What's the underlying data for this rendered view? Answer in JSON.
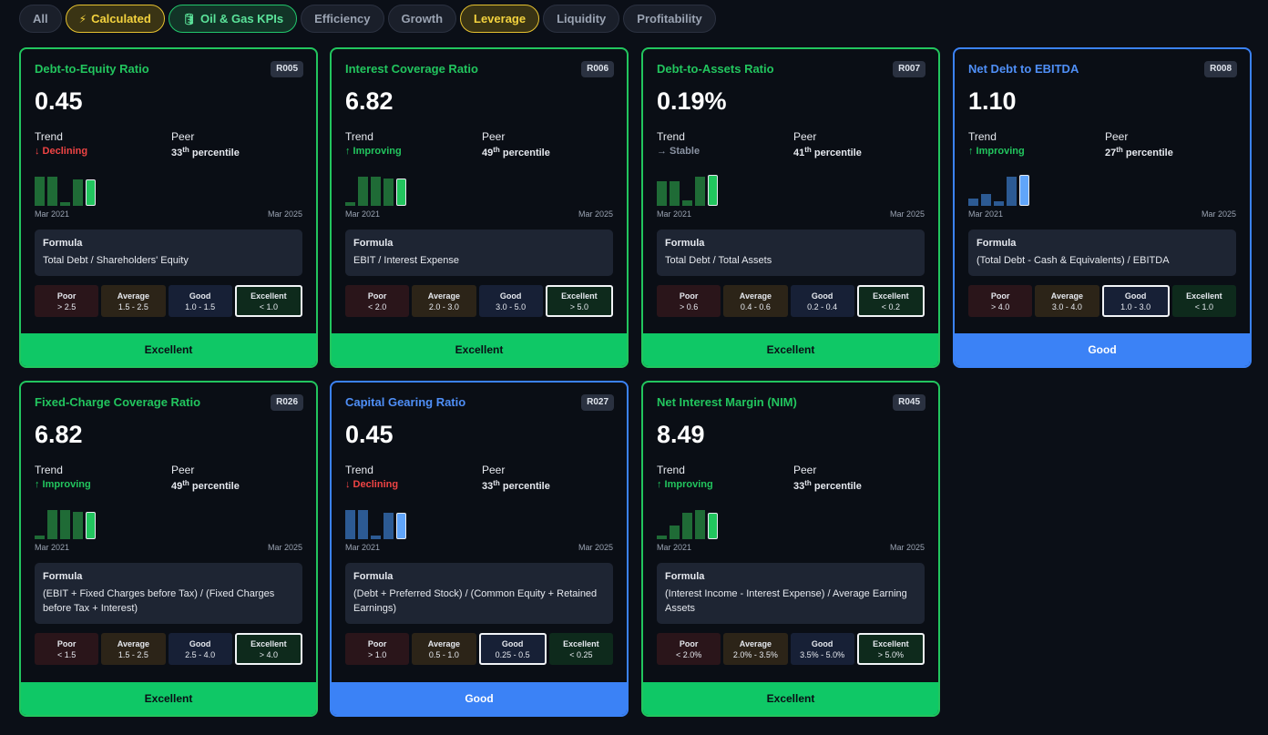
{
  "filters": [
    {
      "label": "All",
      "icon": "",
      "style": "plain"
    },
    {
      "label": "Calculated",
      "icon": "⚡",
      "style": "calc"
    },
    {
      "label": "Oil & Gas KPIs",
      "icon": "🛢",
      "style": "oil"
    },
    {
      "label": "Efficiency",
      "icon": "",
      "style": "plain"
    },
    {
      "label": "Growth",
      "icon": "",
      "style": "plain"
    },
    {
      "label": "Leverage",
      "icon": "",
      "style": "lev"
    },
    {
      "label": "Liquidity",
      "icon": "",
      "style": "plain"
    },
    {
      "label": "Profitability",
      "icon": "",
      "style": "plain"
    }
  ],
  "labels": {
    "trend": "Trend",
    "peer": "Peer",
    "percentile": "percentile",
    "formula": "Formula",
    "date_start": "Mar 2021",
    "date_end": "Mar 2025"
  },
  "colors": {
    "green": "#22c55e",
    "blue": "#3b82f6",
    "red": "#ef4444"
  },
  "cards": [
    {
      "title": "Debt-to-Equity Ratio",
      "code": "R005",
      "value": "0.45",
      "trend": "↓ Declining",
      "trend_dir": "down",
      "peer_num": "33",
      "peer_sup": "th",
      "bars": [
        0.85,
        0.85,
        0.1,
        0.75,
        0.75
      ],
      "color": "green",
      "formula": "Total Debt / Shareholders' Equity",
      "levels": [
        {
          "name": "Poor",
          "range": "> 2.5"
        },
        {
          "name": "Average",
          "range": "1.5 - 2.5"
        },
        {
          "name": "Good",
          "range": "1.0 - 1.5"
        },
        {
          "name": "Excellent",
          "range": "< 1.0"
        }
      ],
      "selected": 3,
      "rating": "Excellent"
    },
    {
      "title": "Interest Coverage Ratio",
      "code": "R006",
      "value": "6.82",
      "trend": "↑ Improving",
      "trend_dir": "up",
      "peer_num": "49",
      "peer_sup": "th",
      "bars": [
        0.1,
        0.85,
        0.85,
        0.8,
        0.8
      ],
      "color": "green",
      "formula": "EBIT / Interest Expense",
      "levels": [
        {
          "name": "Poor",
          "range": "< 2.0"
        },
        {
          "name": "Average",
          "range": "2.0 - 3.0"
        },
        {
          "name": "Good",
          "range": "3.0 - 5.0"
        },
        {
          "name": "Excellent",
          "range": "> 5.0"
        }
      ],
      "selected": 3,
      "rating": "Excellent"
    },
    {
      "title": "Debt-to-Assets Ratio",
      "code": "R007",
      "value": "0.19%",
      "trend": "→ Stable",
      "trend_dir": "flat",
      "peer_num": "41",
      "peer_sup": "th",
      "bars": [
        0.7,
        0.7,
        0.15,
        0.85,
        0.9
      ],
      "color": "green",
      "formula": "Total Debt / Total Assets",
      "levels": [
        {
          "name": "Poor",
          "range": "> 0.6"
        },
        {
          "name": "Average",
          "range": "0.4 - 0.6"
        },
        {
          "name": "Good",
          "range": "0.2 - 0.4"
        },
        {
          "name": "Excellent",
          "range": "< 0.2"
        }
      ],
      "selected": 3,
      "rating": "Excellent"
    },
    {
      "title": "Net Debt to EBITDA",
      "code": "R008",
      "value": "1.10",
      "trend": "↑ Improving",
      "trend_dir": "up",
      "peer_num": "27",
      "peer_sup": "th",
      "bars": [
        0.2,
        0.35,
        0.12,
        0.85,
        0.9
      ],
      "color": "blue",
      "formula": "(Total Debt - Cash & Equivalents) / EBITDA",
      "levels": [
        {
          "name": "Poor",
          "range": "> 4.0"
        },
        {
          "name": "Average",
          "range": "3.0 - 4.0"
        },
        {
          "name": "Good",
          "range": "1.0 - 3.0"
        },
        {
          "name": "Excellent",
          "range": "< 1.0"
        }
      ],
      "selected": 2,
      "rating": "Good"
    },
    {
      "title": "Fixed-Charge Coverage Ratio",
      "code": "R026",
      "value": "6.82",
      "trend": "↑ Improving",
      "trend_dir": "up",
      "peer_num": "49",
      "peer_sup": "th",
      "bars": [
        0.1,
        0.85,
        0.85,
        0.8,
        0.8
      ],
      "color": "green",
      "formula": "(EBIT + Fixed Charges before Tax) / (Fixed Charges before Tax + Interest)",
      "levels": [
        {
          "name": "Poor",
          "range": "< 1.5"
        },
        {
          "name": "Average",
          "range": "1.5 - 2.5"
        },
        {
          "name": "Good",
          "range": "2.5 - 4.0"
        },
        {
          "name": "Excellent",
          "range": "> 4.0"
        }
      ],
      "selected": 3,
      "rating": "Excellent"
    },
    {
      "title": "Capital Gearing Ratio",
      "code": "R027",
      "value": "0.45",
      "trend": "↓ Declining",
      "trend_dir": "down",
      "peer_num": "33",
      "peer_sup": "th",
      "bars": [
        0.85,
        0.85,
        0.1,
        0.75,
        0.75
      ],
      "color": "blue",
      "formula": "(Debt + Preferred Stock) / (Common Equity + Retained Earnings)",
      "levels": [
        {
          "name": "Poor",
          "range": "> 1.0"
        },
        {
          "name": "Average",
          "range": "0.5 - 1.0"
        },
        {
          "name": "Good",
          "range": "0.25 - 0.5"
        },
        {
          "name": "Excellent",
          "range": "< 0.25"
        }
      ],
      "selected": 2,
      "rating": "Good"
    },
    {
      "title": "Net Interest Margin (NIM)",
      "code": "R045",
      "value": "8.49",
      "trend": "↑ Improving",
      "trend_dir": "up",
      "peer_num": "33",
      "peer_sup": "th",
      "bars": [
        0.1,
        0.4,
        0.75,
        0.85,
        0.75
      ],
      "color": "green",
      "formula": "(Interest Income - Interest Expense) / Average Earning Assets",
      "levels": [
        {
          "name": "Poor",
          "range": "< 2.0%"
        },
        {
          "name": "Average",
          "range": "2.0% - 3.5%"
        },
        {
          "name": "Good",
          "range": "3.5% - 5.0%"
        },
        {
          "name": "Excellent",
          "range": "> 5.0%"
        }
      ],
      "selected": 3,
      "rating": "Excellent"
    }
  ]
}
